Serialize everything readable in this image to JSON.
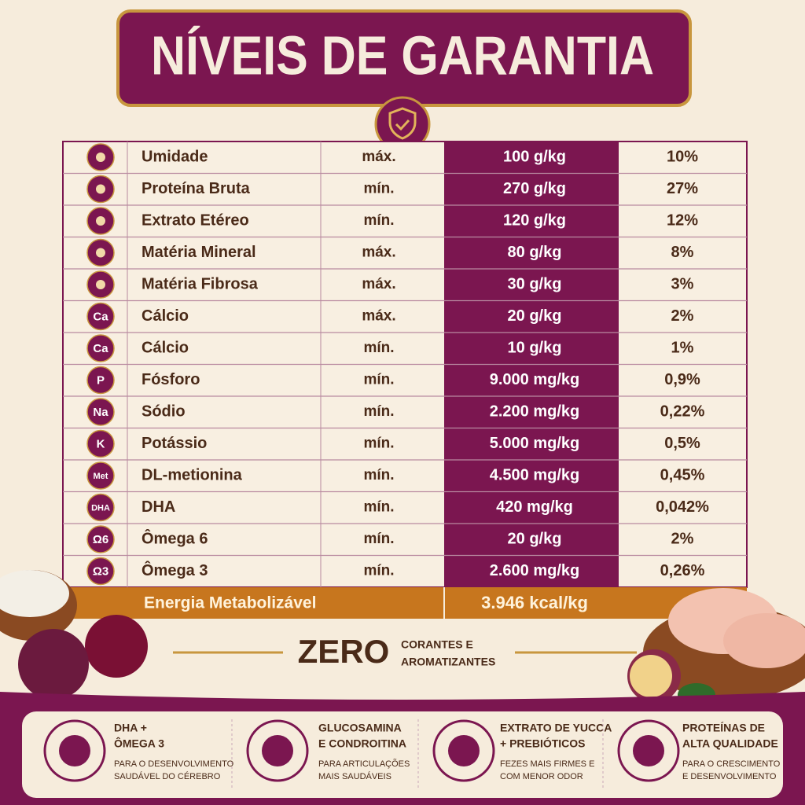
{
  "header": {
    "title": "NÍVEIS DE GARANTIA"
  },
  "table": {
    "rows": [
      {
        "name": "Umidade",
        "qualifier": "máx.",
        "amount": "100 g/kg",
        "percent": "10%"
      },
      {
        "name": "Proteína Bruta",
        "qualifier": "mín.",
        "amount": "270 g/kg",
        "percent": "27%"
      },
      {
        "name": "Extrato Etéreo",
        "qualifier": "mín.",
        "amount": "120 g/kg",
        "percent": "12%"
      },
      {
        "name": "Matéria Mineral",
        "qualifier": "máx.",
        "amount": "80 g/kg",
        "percent": "8%"
      },
      {
        "name": "Matéria Fibrosa",
        "qualifier": "máx.",
        "amount": "30 g/kg",
        "percent": "3%"
      },
      {
        "icon": "Ca",
        "name": "Cálcio",
        "qualifier": "máx.",
        "amount": "20 g/kg",
        "percent": "2%"
      },
      {
        "icon": "Ca",
        "name": "Cálcio",
        "qualifier": "mín.",
        "amount": "10 g/kg",
        "percent": "1%"
      },
      {
        "icon": "P",
        "name": "Fósforo",
        "qualifier": "mín.",
        "amount": "9.000 mg/kg",
        "percent": "0,9%"
      },
      {
        "icon": "Na",
        "name": "Sódio",
        "qualifier": "mín.",
        "amount": "2.200 mg/kg",
        "percent": "0,22%"
      },
      {
        "icon": "K",
        "name": "Potássio",
        "qualifier": "mín.",
        "amount": "5.000 mg/kg",
        "percent": "0,5%"
      },
      {
        "icon": "Met",
        "name": "DL-metionina",
        "qualifier": "mín.",
        "amount": "4.500 mg/kg",
        "percent": "0,45%"
      },
      {
        "icon": "DHA",
        "name": "DHA",
        "qualifier": "mín.",
        "amount": "420 mg/kg",
        "percent": "0,042%"
      },
      {
        "icon": "Ω6",
        "name": "Ômega 6",
        "qualifier": "mín.",
        "amount": "20 g/kg",
        "percent": "2%"
      },
      {
        "icon": "Ω3",
        "name": "Ômega 3",
        "qualifier": "mín.",
        "amount": "2.600 mg/kg",
        "percent": "0,26%"
      }
    ],
    "energy": {
      "label": "Energia Metabolizável",
      "amount": "3.946 kcal/kg"
    }
  },
  "zero": {
    "title": "ZERO",
    "lines": [
      "CORANTES E",
      "AROMATIZANTES"
    ]
  },
  "features": [
    {
      "title": [
        "DHA +",
        "ÔMEGA 3"
      ],
      "description": [
        "PARA O DESENVOLVIMENTO",
        "SAUDÁVEL DO CÉREBRO"
      ]
    },
    {
      "title": [
        "GLUCOSAMINA",
        "E CONDROITINA"
      ],
      "description": [
        "PARA ARTICULAÇÕES",
        "MAIS SAUDÁVEIS"
      ]
    },
    {
      "title": [
        "EXTRATO DE YUCCA",
        "+ PREBIÓTICOS"
      ],
      "description": [
        "FEZES MAIS FIRMES E",
        "COM MENOR ODOR"
      ]
    },
    {
      "title": [
        "PROTEÍNAS DE",
        "ALTA QUALIDADE"
      ],
      "description": [
        "PARA O CRESCIMENTO",
        "E DESENVOLVIMENTO"
      ]
    }
  ]
}
